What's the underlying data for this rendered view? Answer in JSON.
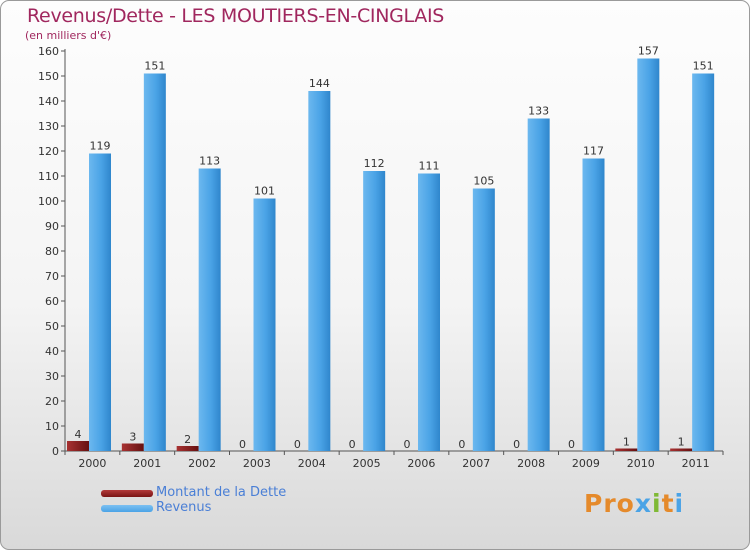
{
  "title": "Revenus/Dette - LES MOUTIERS-EN-CINGLAIS",
  "subtitle": "(en milliers d'€)",
  "colors": {
    "title": "#a0275e",
    "dette": "#7a1414",
    "revenus": "#4aa3e6",
    "axis_text": "#333333",
    "legend_text": "#4a7fd6"
  },
  "legend": [
    {
      "label": "Montant de la Dette",
      "color": "#7a1414"
    },
    {
      "label": "Revenus",
      "color": "#4aa3e6"
    }
  ],
  "logo": {
    "text": "Proxiti",
    "alt": "proxiti-logo"
  },
  "chart_data": {
    "type": "bar",
    "categories": [
      "2000",
      "2001",
      "2002",
      "2003",
      "2004",
      "2005",
      "2006",
      "2007",
      "2008",
      "2009",
      "2010",
      "2011"
    ],
    "series": [
      {
        "name": "Montant de la Dette",
        "values": [
          4,
          3,
          2,
          0,
          0,
          0,
          0,
          0,
          0,
          0,
          1,
          1
        ]
      },
      {
        "name": "Revenus",
        "values": [
          119,
          151,
          113,
          101,
          144,
          112,
          111,
          105,
          133,
          117,
          157,
          151
        ]
      }
    ],
    "ylim": [
      0,
      160
    ],
    "yticks": [
      0,
      10,
      20,
      30,
      40,
      50,
      60,
      70,
      80,
      90,
      100,
      110,
      120,
      130,
      140,
      150,
      160
    ],
    "grid": false,
    "legend_position": "bottom-left",
    "xlabel": "",
    "ylabel": ""
  }
}
